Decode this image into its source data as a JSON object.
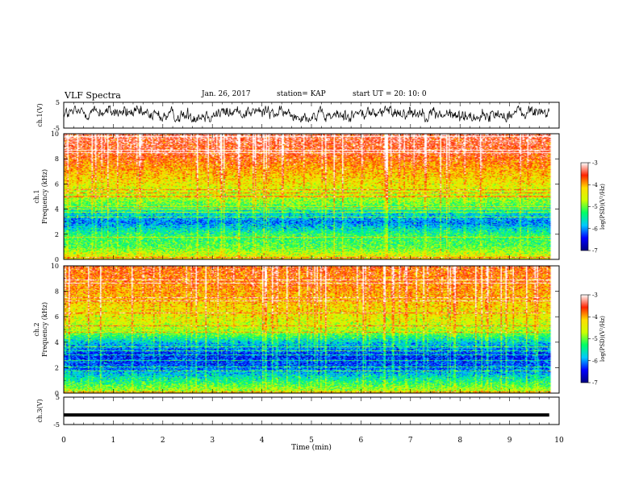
{
  "header": {
    "title": "VLF Spectra",
    "date": "Jan. 26, 2017",
    "station": "station= KAP",
    "start_ut": "start  UT =   20: 10: 0"
  },
  "chart_data": [
    {
      "type": "line",
      "panel": "ch1-waveform",
      "ylabel": "ch.1(V)",
      "ylim": [
        -5,
        5
      ],
      "yticks": [
        "5",
        "-5"
      ],
      "xlim": [
        0,
        10
      ],
      "series": [
        {
          "color": "#000000",
          "style": "noisy trace between about -2.5 and 3.5 V over 0 to 9.8 min"
        }
      ]
    },
    {
      "type": "heatmap",
      "panel": "ch1-spectrogram",
      "ylabel_top": "ch.1",
      "ylabel": "Frequency (kHz)",
      "ylim": [
        0,
        10
      ],
      "yticks": [
        "0",
        "2",
        "4",
        "6",
        "8",
        "10"
      ],
      "xlim": [
        0,
        10
      ],
      "data_end_min": 9.8,
      "colorbar": {
        "label": "log(PSD)(V²/Hz)",
        "range": [
          -7,
          -3
        ],
        "ticks": [
          "-3",
          "-4",
          "-5",
          "-6",
          "-7"
        ],
        "colors": [
          "#000080",
          "#0000ff",
          "#00c8ff",
          "#00ff66",
          "#ccff00",
          "#ffdd00",
          "#ff2200",
          "#ffffff"
        ]
      },
      "levels_by_freq_khz": [
        [
          0,
          -4.3
        ],
        [
          1,
          -5.1
        ],
        [
          2,
          -5.3
        ],
        [
          3,
          -6.1
        ],
        [
          3.8,
          -5.6
        ],
        [
          4.5,
          -5.0
        ],
        [
          5.5,
          -4.6
        ],
        [
          7,
          -4.1
        ],
        [
          8.5,
          -3.6
        ],
        [
          10,
          -3.4
        ]
      ]
    },
    {
      "type": "heatmap",
      "panel": "ch2-spectrogram",
      "ylabel_top": "ch.2",
      "ylabel": "Frequency (kHz)",
      "ylim": [
        0,
        10
      ],
      "yticks": [
        "0",
        "2",
        "4",
        "6",
        "8",
        "10"
      ],
      "xlim": [
        0,
        10
      ],
      "data_end_min": 9.8,
      "colorbar": {
        "label": "log(PSD)(V²/Hz)",
        "range": [
          -7,
          -3
        ],
        "ticks": [
          "-3",
          "-4",
          "-5",
          "-6",
          "-7"
        ],
        "colors": [
          "#000080",
          "#0000ff",
          "#00c8ff",
          "#00ff66",
          "#ccff00",
          "#ffdd00",
          "#ff2200",
          "#ffffff"
        ]
      },
      "levels_by_freq_khz": [
        [
          0,
          -4.6
        ],
        [
          1,
          -5.4
        ],
        [
          2,
          -6.2
        ],
        [
          3,
          -6.4
        ],
        [
          4,
          -5.8
        ],
        [
          5,
          -4.8
        ],
        [
          6,
          -4.5
        ],
        [
          8,
          -4.0
        ],
        [
          10,
          -3.7
        ]
      ]
    },
    {
      "type": "line",
      "panel": "ch3-waveform",
      "ylabel": "ch.3(V)",
      "ylim": [
        -5,
        5
      ],
      "yticks": [
        "5",
        "-5"
      ],
      "xlim": [
        0,
        10
      ],
      "xlabel": "Time (min)",
      "xticks": [
        "0",
        "1",
        "2",
        "3",
        "4",
        "5",
        "6",
        "7",
        "8",
        "9",
        "10"
      ],
      "series": [
        {
          "color": "#000000",
          "style": "flat thick line",
          "constant_value": -1.5,
          "x_end": 9.8
        }
      ]
    }
  ]
}
